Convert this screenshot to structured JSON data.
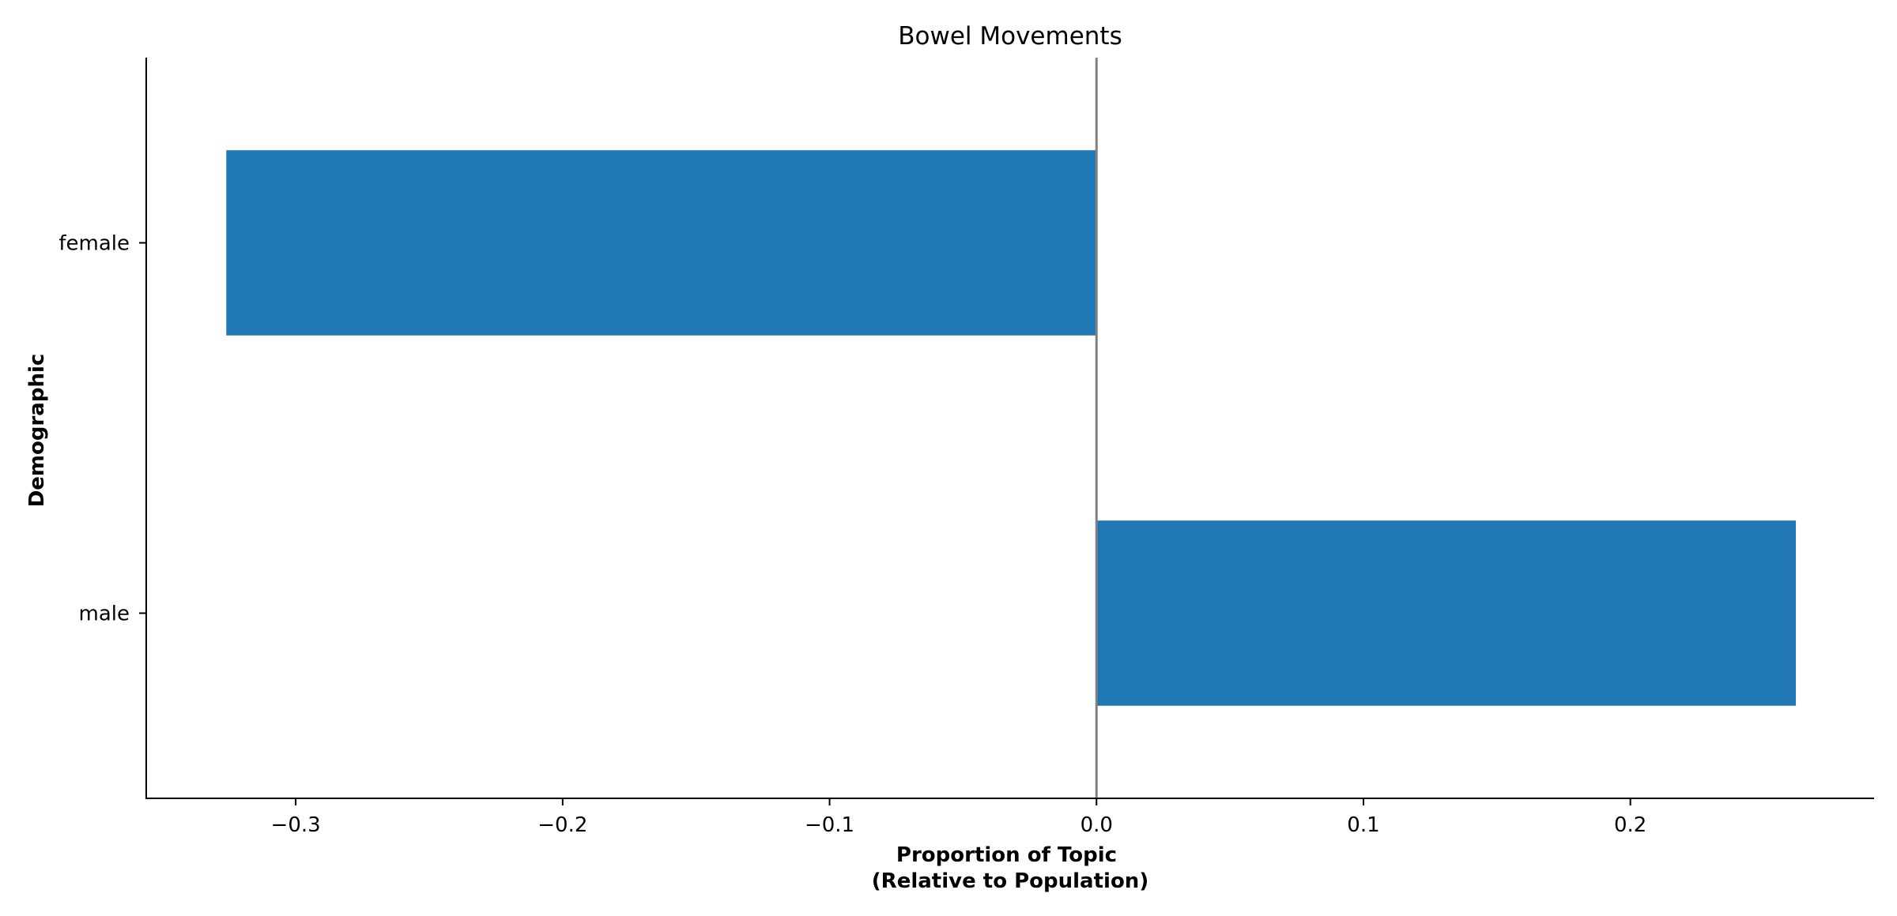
{
  "chart_data": {
    "type": "bar",
    "orientation": "horizontal",
    "title": "Bowel Movements",
    "xlabel_lines": [
      "Proportion of Topic",
      "(Relative to Population)"
    ],
    "ylabel": "Demographic",
    "categories": [
      "female",
      "male"
    ],
    "values": [
      -0.326,
      0.262
    ],
    "xlim": [
      -0.356,
      0.291
    ],
    "xticks": [
      -0.3,
      -0.2,
      -0.1,
      0.0,
      0.1,
      0.2
    ],
    "xtick_labels": [
      "−0.3",
      "−0.2",
      "−0.1",
      "0.0",
      "0.1",
      "0.2"
    ],
    "bar_color": "#1f77b4",
    "zero_line_color": "#808080",
    "grid": false,
    "legend": "none"
  }
}
